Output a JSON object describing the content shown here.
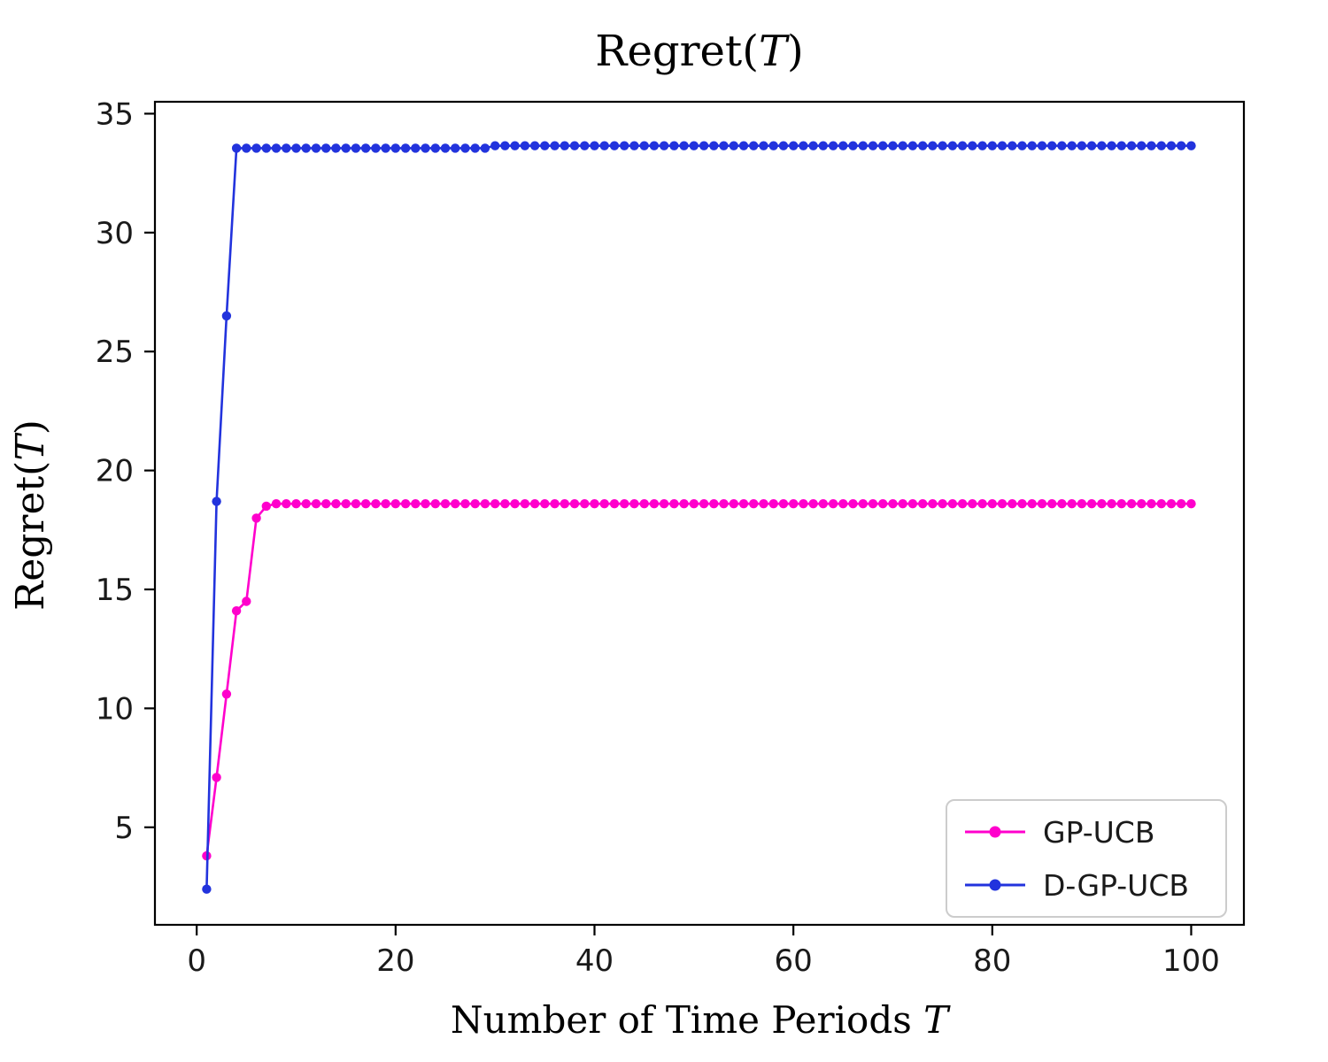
{
  "title": {
    "pre": "Regret(",
    "var": "T",
    "post": ")"
  },
  "xlabel": {
    "pre": "Number of Time Periods ",
    "var": "T",
    "post": ""
  },
  "ylabel": {
    "pre": "Regret(",
    "var": "T",
    "post": ")"
  },
  "colors": {
    "gp_ucb": "#ff00cc",
    "d_gp_ucb": "#2233dd",
    "axis": "#000000",
    "tick_text": "#1a1a1a",
    "legend_border": "#cccccc"
  },
  "chart_data": {
    "type": "line",
    "title": "Regret(T)",
    "xlabel": "Number of Time Periods T",
    "ylabel": "Regret(T)",
    "grid": false,
    "legend_position": "lower right",
    "marker": "circle",
    "xlim": [
      -4.2,
      105.3
    ],
    "ylim": [
      0.9,
      35.5
    ],
    "xticks": [
      0,
      20,
      40,
      60,
      80,
      100
    ],
    "yticks": [
      5,
      10,
      15,
      20,
      25,
      30,
      35
    ],
    "x": [
      1,
      2,
      3,
      4,
      5,
      6,
      7,
      8,
      9,
      10,
      11,
      12,
      13,
      14,
      15,
      16,
      17,
      18,
      19,
      20,
      21,
      22,
      23,
      24,
      25,
      26,
      27,
      28,
      29,
      30,
      31,
      32,
      33,
      34,
      35,
      36,
      37,
      38,
      39,
      40,
      41,
      42,
      43,
      44,
      45,
      46,
      47,
      48,
      49,
      50,
      51,
      52,
      53,
      54,
      55,
      56,
      57,
      58,
      59,
      60,
      61,
      62,
      63,
      64,
      65,
      66,
      67,
      68,
      69,
      70,
      71,
      72,
      73,
      74,
      75,
      76,
      77,
      78,
      79,
      80,
      81,
      82,
      83,
      84,
      85,
      86,
      87,
      88,
      89,
      90,
      91,
      92,
      93,
      94,
      95,
      96,
      97,
      98,
      99,
      100
    ],
    "series": [
      {
        "name": "GP-UCB",
        "color": "#ff00cc",
        "values": [
          3.8,
          7.1,
          10.6,
          14.1,
          14.5,
          18.0,
          18.5,
          18.6,
          18.6,
          18.6,
          18.6,
          18.6,
          18.6,
          18.6,
          18.6,
          18.6,
          18.6,
          18.6,
          18.6,
          18.6,
          18.6,
          18.6,
          18.6,
          18.6,
          18.6,
          18.6,
          18.6,
          18.6,
          18.6,
          18.6,
          18.6,
          18.6,
          18.6,
          18.6,
          18.6,
          18.6,
          18.6,
          18.6,
          18.6,
          18.6,
          18.6,
          18.6,
          18.6,
          18.6,
          18.6,
          18.6,
          18.6,
          18.6,
          18.6,
          18.6,
          18.6,
          18.6,
          18.6,
          18.6,
          18.6,
          18.6,
          18.6,
          18.6,
          18.6,
          18.6,
          18.6,
          18.6,
          18.6,
          18.6,
          18.6,
          18.6,
          18.6,
          18.6,
          18.6,
          18.6,
          18.6,
          18.6,
          18.6,
          18.6,
          18.6,
          18.6,
          18.6,
          18.6,
          18.6,
          18.6,
          18.6,
          18.6,
          18.6,
          18.6,
          18.6,
          18.6,
          18.6,
          18.6,
          18.6,
          18.6,
          18.6,
          18.6,
          18.6,
          18.6,
          18.6,
          18.6,
          18.6,
          18.6,
          18.6,
          18.6
        ]
      },
      {
        "name": "D-GP-UCB",
        "color": "#2233dd",
        "values": [
          2.4,
          18.7,
          26.5,
          33.55,
          33.55,
          33.55,
          33.55,
          33.55,
          33.55,
          33.55,
          33.55,
          33.55,
          33.55,
          33.55,
          33.55,
          33.55,
          33.55,
          33.55,
          33.55,
          33.55,
          33.55,
          33.55,
          33.55,
          33.55,
          33.55,
          33.55,
          33.55,
          33.55,
          33.55,
          33.65,
          33.65,
          33.65,
          33.65,
          33.65,
          33.65,
          33.65,
          33.65,
          33.65,
          33.65,
          33.65,
          33.65,
          33.65,
          33.65,
          33.65,
          33.65,
          33.65,
          33.65,
          33.65,
          33.65,
          33.65,
          33.65,
          33.65,
          33.65,
          33.65,
          33.65,
          33.65,
          33.65,
          33.65,
          33.65,
          33.65,
          33.65,
          33.65,
          33.65,
          33.65,
          33.65,
          33.65,
          33.65,
          33.65,
          33.65,
          33.65,
          33.65,
          33.65,
          33.65,
          33.65,
          33.65,
          33.65,
          33.65,
          33.65,
          33.65,
          33.65,
          33.65,
          33.65,
          33.65,
          33.65,
          33.65,
          33.65,
          33.65,
          33.65,
          33.65,
          33.65,
          33.65,
          33.65,
          33.65,
          33.65,
          33.65,
          33.65,
          33.65,
          33.65,
          33.65,
          33.65
        ]
      }
    ]
  },
  "legend": {
    "entries": [
      {
        "label": "GP-UCB",
        "color": "#ff00cc"
      },
      {
        "label": "D-GP-UCB",
        "color": "#2233dd"
      }
    ]
  }
}
